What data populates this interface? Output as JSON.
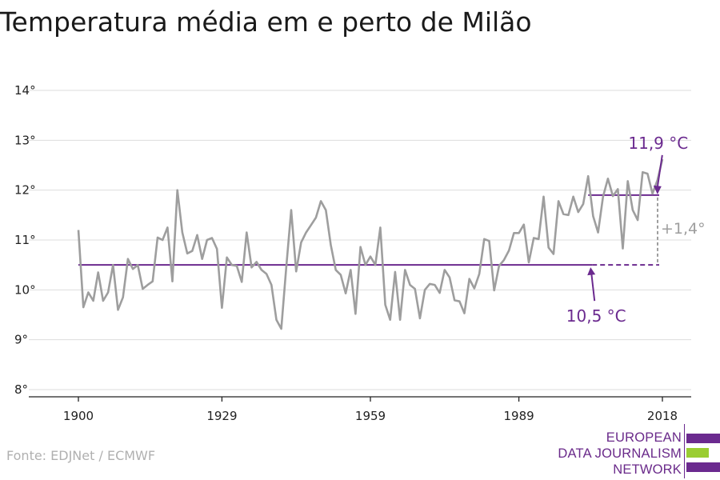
{
  "title": "Temperatura média em e perto de Milão",
  "source": "Fonte: EDJNet / ECMWF",
  "logo": {
    "lines": [
      "EUROPEAN",
      "DATA JOURNALISM",
      "NETWORK"
    ],
    "colors": {
      "purple": "#6b2a8f",
      "green": "#9acd32"
    }
  },
  "colors": {
    "series": "#9e9e9e",
    "reference": "#6b2a8f",
    "grid": "#dddddd"
  },
  "chart_data": {
    "type": "line",
    "title": "Temperatura média em e perto de Milão",
    "xlim": [
      1900,
      2018
    ],
    "ylim": [
      8,
      14
    ],
    "x_ticks": [
      1900,
      1929,
      1959,
      1989,
      2018
    ],
    "y_ticks": [
      8,
      9,
      10,
      11,
      12,
      13,
      14
    ],
    "y_tick_labels": [
      "8°",
      "9°",
      "10°",
      "11°",
      "12°",
      "13°",
      "14°"
    ],
    "grid": true,
    "series": [
      {
        "x": [
          1900,
          1901,
          1902,
          1903,
          1904,
          1905,
          1906,
          1907,
          1908,
          1909,
          1910,
          1911,
          1912,
          1913,
          1914,
          1915,
          1916,
          1917,
          1918,
          1919,
          1920,
          1921,
          1922,
          1923,
          1924,
          1925,
          1926,
          1927,
          1928,
          1929,
          1930,
          1931,
          1932,
          1933,
          1934,
          1935,
          1936,
          1937,
          1938,
          1939,
          1940,
          1941,
          1942,
          1943,
          1944,
          1945,
          1946,
          1947,
          1948,
          1949,
          1950,
          1951,
          1952,
          1953,
          1954,
          1955,
          1956,
          1957,
          1958,
          1959,
          1960,
          1961,
          1962,
          1963,
          1964,
          1965,
          1966,
          1967,
          1968,
          1969,
          1970,
          1971,
          1972,
          1973,
          1974,
          1975,
          1976,
          1977,
          1978,
          1979,
          1980,
          1981,
          1982,
          1983,
          1984,
          1985,
          1986,
          1987,
          1988,
          1989,
          1990,
          1991,
          1992,
          1993,
          1994,
          1995,
          1996,
          1997,
          1998,
          1999,
          2000,
          2001,
          2002,
          2003,
          2004,
          2005,
          2006,
          2007,
          2008,
          2009,
          2010,
          2011,
          2012,
          2013,
          2014,
          2015,
          2016,
          2017,
          2018
        ],
        "values": [
          11.2,
          9.65,
          9.95,
          9.78,
          10.35,
          9.78,
          9.95,
          10.5,
          9.6,
          9.85,
          10.62,
          10.42,
          10.5,
          10.02,
          10.1,
          10.17,
          11.05,
          11.0,
          11.25,
          10.17,
          12.0,
          11.15,
          10.73,
          10.78,
          11.1,
          10.62,
          11.0,
          11.04,
          10.82,
          9.64,
          10.65,
          10.5,
          10.48,
          10.16,
          11.15,
          10.45,
          10.56,
          10.4,
          10.32,
          10.1,
          9.4,
          9.22,
          10.45,
          11.6,
          10.37,
          10.95,
          11.15,
          11.3,
          11.45,
          11.78,
          11.6,
          10.9,
          10.4,
          10.3,
          9.93,
          10.4,
          9.52,
          10.86,
          10.5,
          10.67,
          10.5,
          11.25,
          9.7,
          9.4,
          10.36,
          9.4,
          10.4,
          10.1,
          10.02,
          9.43,
          10.0,
          10.12,
          10.1,
          9.94,
          10.4,
          10.25,
          9.79,
          9.77,
          9.53,
          10.22,
          10.03,
          10.32,
          11.02,
          10.98,
          9.99,
          10.48,
          10.6,
          10.79,
          11.14,
          11.14,
          11.31,
          10.55,
          11.04,
          11.02,
          11.87,
          10.85,
          10.72,
          11.78,
          11.52,
          11.5,
          11.87,
          11.56,
          11.72,
          12.28,
          11.48,
          11.15,
          11.87,
          12.23,
          11.88,
          12.02,
          10.83,
          12.18,
          11.6,
          11.4,
          12.36,
          12.33,
          11.93,
          12.2,
          12.62
        ]
      }
    ],
    "reference_lines": [
      {
        "label": "10,5 °C",
        "value": 10.5,
        "x_start": 1900,
        "x_end": 2018
      },
      {
        "label": "11,9 °C",
        "value": 11.9,
        "x_start": 2003,
        "x_end": 2018
      }
    ],
    "difference_label": "+1,4°"
  }
}
